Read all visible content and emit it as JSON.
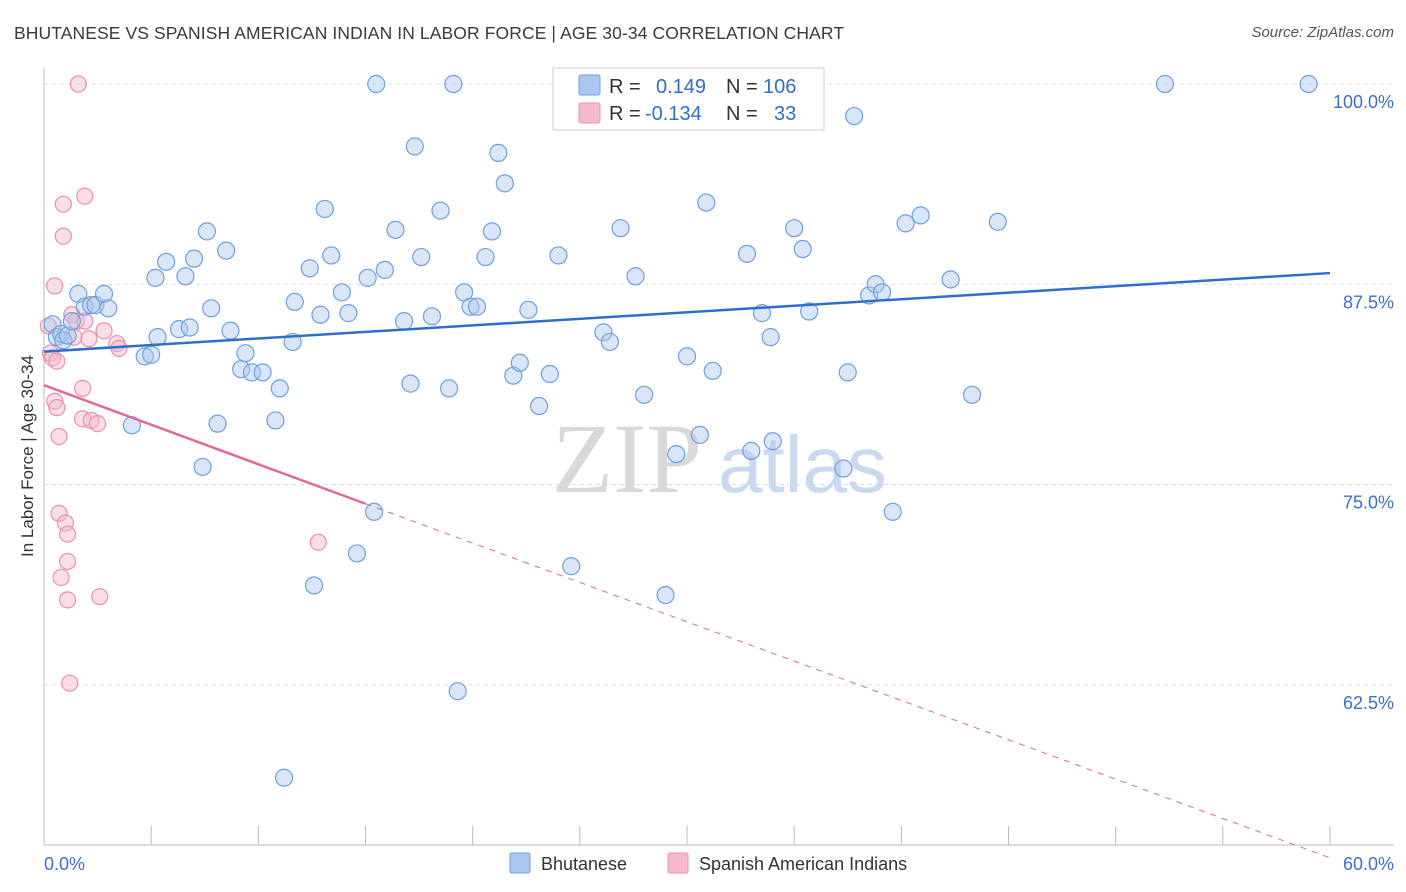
{
  "title": "BHUTANESE VS SPANISH AMERICAN INDIAN IN LABOR FORCE | AGE 30-34 CORRELATION CHART",
  "source": "Source: ZipAtlas.com",
  "watermark": {
    "zip": "ZIP",
    "atlas": "atlas"
  },
  "colors": {
    "blue_fill": "#aac8ef",
    "blue_stroke": "#6f9fdc",
    "blue_line": "#2f6fcc",
    "pink_fill": "#f5b8cc",
    "pink_stroke": "#ec8fae",
    "pink_line": "#e0699a",
    "tick_text": "#3b6fcf",
    "grid": "#dddddd"
  },
  "legend": {
    "rows": [
      {
        "r_label": "R =",
        "r_value": "0.149",
        "n_label": "N =",
        "n_value": "106"
      },
      {
        "r_label": "R =",
        "r_value": "-0.134",
        "n_label": "N =",
        "n_value": "33"
      }
    ]
  },
  "chart_data": {
    "type": "scatter",
    "ylabel": "In Labor Force | Age 30-34",
    "xlim": [
      0,
      60
    ],
    "ylim": [
      52.5,
      101
    ],
    "x_tick_labels": [
      "0.0%",
      "60.0%"
    ],
    "y_ticks": [
      62.5,
      75.0,
      87.5,
      100.0
    ],
    "y_tick_labels": [
      "62.5%",
      "75.0%",
      "87.5%",
      "100.0%"
    ],
    "grid": "horizontal dashed",
    "legend_position": "top-center",
    "series": [
      {
        "name": "Bhutanese",
        "R": 0.149,
        "N": 106,
        "trend": {
          "x0": 0,
          "y0": 83.3,
          "x1": 60,
          "y1": 88.2
        },
        "points": [
          [
            0.4,
            85.0
          ],
          [
            0.6,
            84.2
          ],
          [
            0.8,
            84.4
          ],
          [
            0.9,
            84.0
          ],
          [
            1.1,
            84.3
          ],
          [
            1.3,
            85.2
          ],
          [
            1.6,
            86.9
          ],
          [
            1.9,
            86.1
          ],
          [
            2.2,
            86.2
          ],
          [
            2.4,
            86.2
          ],
          [
            2.8,
            86.9
          ],
          [
            3.0,
            86.0
          ],
          [
            4.1,
            78.7
          ],
          [
            4.7,
            83.0
          ],
          [
            5.0,
            83.1
          ],
          [
            5.2,
            87.9
          ],
          [
            5.3,
            84.2
          ],
          [
            5.7,
            88.9
          ],
          [
            6.3,
            84.7
          ],
          [
            6.6,
            88.0
          ],
          [
            6.8,
            84.8
          ],
          [
            7.0,
            89.1
          ],
          [
            7.4,
            76.1
          ],
          [
            7.6,
            90.8
          ],
          [
            7.8,
            86.0
          ],
          [
            8.1,
            78.8
          ],
          [
            8.5,
            89.6
          ],
          [
            8.7,
            84.6
          ],
          [
            9.2,
            82.2
          ],
          [
            9.4,
            83.2
          ],
          [
            9.7,
            82.0
          ],
          [
            10.2,
            82.0
          ],
          [
            10.8,
            79.0
          ],
          [
            11.0,
            81.0
          ],
          [
            11.2,
            56.7
          ],
          [
            11.6,
            83.9
          ],
          [
            11.7,
            86.4
          ],
          [
            12.4,
            88.5
          ],
          [
            12.6,
            68.7
          ],
          [
            12.9,
            85.6
          ],
          [
            13.1,
            92.2
          ],
          [
            13.4,
            89.3
          ],
          [
            13.9,
            87.0
          ],
          [
            14.2,
            85.7
          ],
          [
            14.6,
            70.7
          ],
          [
            15.1,
            87.9
          ],
          [
            15.4,
            73.3
          ],
          [
            15.5,
            100.0
          ],
          [
            15.9,
            88.4
          ],
          [
            16.4,
            90.9
          ],
          [
            16.8,
            85.2
          ],
          [
            17.1,
            81.3
          ],
          [
            17.3,
            96.1
          ],
          [
            17.6,
            89.2
          ],
          [
            18.1,
            85.5
          ],
          [
            18.5,
            92.1
          ],
          [
            18.9,
            81.0
          ],
          [
            19.1,
            100.0
          ],
          [
            19.3,
            62.1
          ],
          [
            19.6,
            87.0
          ],
          [
            19.9,
            86.1
          ],
          [
            20.2,
            86.1
          ],
          [
            20.6,
            89.2
          ],
          [
            20.9,
            90.8
          ],
          [
            21.2,
            95.7
          ],
          [
            21.5,
            93.8
          ],
          [
            21.9,
            81.8
          ],
          [
            22.2,
            82.6
          ],
          [
            22.6,
            85.9
          ],
          [
            23.1,
            79.9
          ],
          [
            23.6,
            81.9
          ],
          [
            24.0,
            89.3
          ],
          [
            24.6,
            69.9
          ],
          [
            26.1,
            84.5
          ],
          [
            26.4,
            83.9
          ],
          [
            26.9,
            91.0
          ],
          [
            27.6,
            88.0
          ],
          [
            28.0,
            80.6
          ],
          [
            29.0,
            68.1
          ],
          [
            29.5,
            76.9
          ],
          [
            30.0,
            83.0
          ],
          [
            30.6,
            78.1
          ],
          [
            30.9,
            92.6
          ],
          [
            31.2,
            82.1
          ],
          [
            32.8,
            89.4
          ],
          [
            33.0,
            77.1
          ],
          [
            33.5,
            85.7
          ],
          [
            33.9,
            84.2
          ],
          [
            34.0,
            77.7
          ],
          [
            35.0,
            91.0
          ],
          [
            35.4,
            89.7
          ],
          [
            35.7,
            85.8
          ],
          [
            37.3,
            76.0
          ],
          [
            37.5,
            82.0
          ],
          [
            37.8,
            98.0
          ],
          [
            38.5,
            86.8
          ],
          [
            38.8,
            87.5
          ],
          [
            39.1,
            87.0
          ],
          [
            39.6,
            73.3
          ],
          [
            40.2,
            91.3
          ],
          [
            40.9,
            91.8
          ],
          [
            42.3,
            87.8
          ],
          [
            43.3,
            80.6
          ],
          [
            44.5,
            91.4
          ],
          [
            52.3,
            100.0
          ],
          [
            59.0,
            100.0
          ]
        ]
      },
      {
        "name": "Spanish American Indians",
        "R": -0.134,
        "N": 33,
        "trend": {
          "x0": 0,
          "y0": 81.2,
          "x1": 15.0,
          "y1": 73.8,
          "dashed_to": {
            "x": 60,
            "y": 51.7
          }
        },
        "points": [
          [
            0.2,
            84.9
          ],
          [
            0.3,
            83.2
          ],
          [
            0.4,
            82.9
          ],
          [
            0.5,
            80.2
          ],
          [
            0.5,
            87.4
          ],
          [
            0.6,
            82.7
          ],
          [
            0.6,
            79.8
          ],
          [
            0.7,
            78.0
          ],
          [
            0.7,
            73.2
          ],
          [
            0.8,
            69.2
          ],
          [
            0.9,
            90.5
          ],
          [
            0.9,
            92.5
          ],
          [
            1.0,
            72.6
          ],
          [
            1.1,
            70.2
          ],
          [
            1.1,
            71.9
          ],
          [
            1.1,
            67.8
          ],
          [
            1.2,
            62.6
          ],
          [
            1.3,
            85.6
          ],
          [
            1.4,
            84.2
          ],
          [
            1.5,
            85.2
          ],
          [
            1.6,
            100.0
          ],
          [
            1.8,
            81.0
          ],
          [
            1.8,
            79.1
          ],
          [
            1.9,
            85.2
          ],
          [
            1.9,
            93.0
          ],
          [
            2.1,
            84.1
          ],
          [
            2.2,
            79.0
          ],
          [
            2.5,
            78.8
          ],
          [
            2.6,
            68.0
          ],
          [
            2.8,
            84.6
          ],
          [
            3.4,
            83.8
          ],
          [
            3.5,
            83.5
          ],
          [
            12.8,
            71.4
          ]
        ]
      }
    ]
  },
  "bottom_legend": [
    "Bhutanese",
    "Spanish American Indians"
  ]
}
